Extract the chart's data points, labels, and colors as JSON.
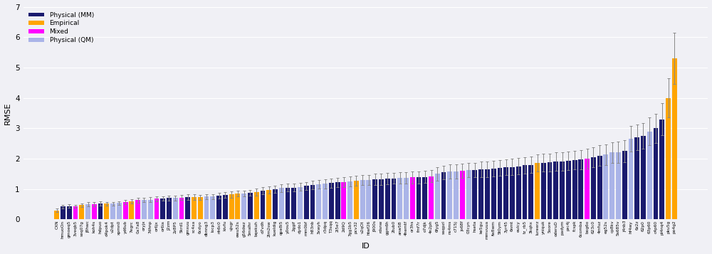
{
  "bars": [
    {
      "id": "CXN",
      "value": 0.3,
      "color": "#FFA500",
      "err": 0.05
    },
    {
      "id": "hmuoOn",
      "value": 0.42,
      "color": "#1a1a6e",
      "err": 0.06
    },
    {
      "id": "gmoeq5",
      "value": 0.44,
      "color": "#1a1a6e",
      "err": 0.06
    },
    {
      "id": "3veqb5",
      "value": 0.43,
      "color": "#FF00FF",
      "err": 0.05
    },
    {
      "id": "seq07g",
      "value": 0.47,
      "color": "#FFA500",
      "err": 0.06
    },
    {
      "id": "j8hwc",
      "value": 0.5,
      "color": "#aab4e8",
      "err": 0.06
    },
    {
      "id": "koh4s",
      "value": 0.5,
      "color": "#FF00FF",
      "err": 0.06
    },
    {
      "id": "hdpuo",
      "value": 0.52,
      "color": "#1a1a6e",
      "err": 0.07
    },
    {
      "id": "d4pok4",
      "value": 0.52,
      "color": "#FFA500",
      "err": 0.06
    },
    {
      "id": "v2dpt",
      "value": 0.52,
      "color": "#aab4e8",
      "err": 0.06
    },
    {
      "id": "xpmn0",
      "value": 0.54,
      "color": "#aab4e8",
      "err": 0.06
    },
    {
      "id": "yd6ub",
      "value": 0.56,
      "color": "#FF00FF",
      "err": 0.07
    },
    {
      "id": "7egrc",
      "value": 0.6,
      "color": "#FFA500",
      "err": 0.07
    },
    {
      "id": "0a7a8",
      "value": 0.63,
      "color": "#FF00FF",
      "err": 0.08
    },
    {
      "id": "oryjx",
      "value": 0.65,
      "color": "#aab4e8",
      "err": 0.07
    },
    {
      "id": "7dhnp",
      "value": 0.65,
      "color": "#aab4e8",
      "err": 0.08
    },
    {
      "id": "or6jx",
      "value": 0.68,
      "color": "#FF00FF",
      "err": 0.08
    },
    {
      "id": "or6ia",
      "value": 0.68,
      "color": "#1a1a6e",
      "err": 0.07
    },
    {
      "id": "J2zm",
      "value": 0.7,
      "color": "#1a1a6e",
      "err": 0.08
    },
    {
      "id": "2z8P5",
      "value": 0.7,
      "color": "#aab4e8",
      "err": 0.08
    },
    {
      "id": "5krd1",
      "value": 0.72,
      "color": "#FF00FF",
      "err": 0.09
    },
    {
      "id": "gmxuu",
      "value": 0.73,
      "color": "#1a1a6e",
      "err": 0.09
    },
    {
      "id": "sc4xa",
      "value": 0.73,
      "color": "#FFA500",
      "err": 0.09
    },
    {
      "id": "6cdyo",
      "value": 0.73,
      "color": "#FFA500",
      "err": 0.08
    },
    {
      "id": "dbnng3",
      "value": 0.75,
      "color": "#aab4e8",
      "err": 0.09
    },
    {
      "id": "locp3",
      "value": 0.75,
      "color": "#aab4e8",
      "err": 0.09
    },
    {
      "id": "nh6c0",
      "value": 0.78,
      "color": "#1a1a6e",
      "err": 0.1
    },
    {
      "id": "kivfu",
      "value": 0.8,
      "color": "#1a1a6e",
      "err": 0.1
    },
    {
      "id": "ujsgr",
      "value": 0.82,
      "color": "#FFA500",
      "err": 0.1
    },
    {
      "id": "ewu52s",
      "value": 0.85,
      "color": "#FFA500",
      "err": 0.1
    },
    {
      "id": "g56dwz",
      "value": 0.85,
      "color": "#aab4e8",
      "err": 0.1
    },
    {
      "id": "5malhr",
      "value": 0.88,
      "color": "#1a1a6e",
      "err": 0.1
    },
    {
      "id": "bqekuh",
      "value": 0.9,
      "color": "#FFA500",
      "err": 0.11
    },
    {
      "id": "d7vdh",
      "value": 0.95,
      "color": "#1a1a6e",
      "err": 0.12
    },
    {
      "id": "2lm2sw",
      "value": 0.97,
      "color": "#FFA500",
      "err": 0.12
    },
    {
      "id": "kueldig",
      "value": 1.0,
      "color": "#1a1a6e",
      "err": 0.12
    },
    {
      "id": "qpe8i5",
      "value": 1.03,
      "color": "#aab4e8",
      "err": 0.13
    },
    {
      "id": "y0ou5",
      "value": 1.05,
      "color": "#1a1a6e",
      "err": 0.13
    },
    {
      "id": "2ggif",
      "value": 1.05,
      "color": "#1a1a6e",
      "err": 0.13
    },
    {
      "id": "dydo1",
      "value": 1.07,
      "color": "#aab4e8",
      "err": 0.13
    },
    {
      "id": "mm0bf",
      "value": 1.1,
      "color": "#1a1a6e",
      "err": 0.13
    },
    {
      "id": "h83nb",
      "value": 1.13,
      "color": "#1a1a6e",
      "err": 0.14
    },
    {
      "id": "3xwyh",
      "value": 1.15,
      "color": "#aab4e8",
      "err": 0.14
    },
    {
      "id": "r3dpq",
      "value": 1.17,
      "color": "#aab4e8",
      "err": 0.15
    },
    {
      "id": "T3sqq",
      "value": 1.2,
      "color": "#1a1a6e",
      "err": 0.15
    },
    {
      "id": "2i5e7",
      "value": 1.22,
      "color": "#1a1a6e",
      "err": 0.15
    },
    {
      "id": "2d9Q",
      "value": 1.22,
      "color": "#FF00FF",
      "err": 0.16
    },
    {
      "id": "7gg1b5",
      "value": 1.25,
      "color": "#aab4e8",
      "err": 0.16
    },
    {
      "id": "pcv32",
      "value": 1.27,
      "color": "#FFA500",
      "err": 0.17
    },
    {
      "id": "v2qOt",
      "value": 1.3,
      "color": "#aab4e8",
      "err": 0.17
    },
    {
      "id": "htwf26",
      "value": 1.3,
      "color": "#aab4e8",
      "err": 0.17
    },
    {
      "id": "j900s",
      "value": 1.32,
      "color": "#1a1a6e",
      "err": 0.18
    },
    {
      "id": "rdsnw",
      "value": 1.32,
      "color": "#1a1a6e",
      "err": 0.18
    },
    {
      "id": "ggm6h",
      "value": 1.34,
      "color": "#1a1a6e",
      "err": 0.18
    },
    {
      "id": "2tub0",
      "value": 1.35,
      "color": "#1a1a6e",
      "err": 0.18
    },
    {
      "id": "anw5B",
      "value": 1.37,
      "color": "#aab4e8",
      "err": 0.19
    },
    {
      "id": "4hemtf",
      "value": 1.37,
      "color": "#aab4e8",
      "err": 0.19
    },
    {
      "id": "or3hs",
      "value": 1.38,
      "color": "#FF00FF",
      "err": 0.19
    },
    {
      "id": "fmf7r",
      "value": 1.38,
      "color": "#1a1a6e",
      "err": 0.2
    },
    {
      "id": "o7djk",
      "value": 1.4,
      "color": "#1a1a6e",
      "err": 0.2
    },
    {
      "id": "4n2ph",
      "value": 1.42,
      "color": "#FF00FF",
      "err": 0.2
    },
    {
      "id": "6fyg5",
      "value": 1.5,
      "color": "#aab4e8",
      "err": 0.22
    },
    {
      "id": "saqpzl",
      "value": 1.55,
      "color": "#1a1a6e",
      "err": 0.22
    },
    {
      "id": "ns4ms",
      "value": 1.58,
      "color": "#aab4e8",
      "err": 0.23
    },
    {
      "id": "c715j",
      "value": 1.58,
      "color": "#aab4e8",
      "err": 0.23
    },
    {
      "id": "jo68f",
      "value": 1.6,
      "color": "#FF00FF",
      "err": 0.24
    },
    {
      "id": "03cyn",
      "value": 1.62,
      "color": "#aab4e8",
      "err": 0.24
    },
    {
      "id": "hseta",
      "value": 1.62,
      "color": "#1a1a6e",
      "err": 0.24
    },
    {
      "id": "ke5gu",
      "value": 1.65,
      "color": "#1a1a6e",
      "err": 0.25
    },
    {
      "id": "mmvuua",
      "value": 1.65,
      "color": "#1a1a6e",
      "err": 0.25
    },
    {
      "id": "fw8wm",
      "value": 1.67,
      "color": "#1a1a6e",
      "err": 0.25
    },
    {
      "id": "5t0ym",
      "value": 1.7,
      "color": "#1a1a6e",
      "err": 0.26
    },
    {
      "id": "3yr45",
      "value": 1.72,
      "color": "#1a1a6e",
      "err": 0.26
    },
    {
      "id": "6nmt",
      "value": 1.73,
      "color": "#1a1a6e",
      "err": 0.26
    },
    {
      "id": "eulcy",
      "value": 1.75,
      "color": "#1a1a6e",
      "err": 0.27
    },
    {
      "id": "tz_rb5",
      "value": 1.78,
      "color": "#1a1a6e",
      "err": 0.27
    },
    {
      "id": "3kqhx",
      "value": 1.8,
      "color": "#1a1a6e",
      "err": 0.28
    },
    {
      "id": "lureerz",
      "value": 1.85,
      "color": "#FFA500",
      "err": 0.28
    },
    {
      "id": "yniquk",
      "value": 1.87,
      "color": "#1a1a6e",
      "err": 0.29
    },
    {
      "id": "5oore",
      "value": 1.88,
      "color": "#1a1a6e",
      "err": 0.29
    },
    {
      "id": "oderuD",
      "value": 1.9,
      "color": "#1a1a6e",
      "err": 0.3
    },
    {
      "id": "padym",
      "value": 1.9,
      "color": "#1a1a6e",
      "err": 0.3
    },
    {
      "id": "prc4j",
      "value": 1.93,
      "color": "#1a1a6e",
      "err": 0.3
    },
    {
      "id": "fcspk",
      "value": 1.95,
      "color": "#1a1a6e",
      "err": 0.31
    },
    {
      "id": "6comba",
      "value": 1.97,
      "color": "#1a1a6e",
      "err": 0.31
    },
    {
      "id": "bog6o",
      "value": 2.0,
      "color": "#FF00FF",
      "err": 0.32
    },
    {
      "id": "623c0",
      "value": 2.05,
      "color": "#1a1a6e",
      "err": 0.33
    },
    {
      "id": "4mfuz",
      "value": 2.1,
      "color": "#1a1a6e",
      "err": 0.34
    },
    {
      "id": "eg52s",
      "value": 2.13,
      "color": "#aab4e8",
      "err": 0.34
    },
    {
      "id": "cp8kv",
      "value": 2.2,
      "color": "#aab4e8",
      "err": 0.35
    },
    {
      "id": "5s685v",
      "value": 2.22,
      "color": "#aab4e8",
      "err": 0.35
    },
    {
      "id": "j4nb3",
      "value": 2.25,
      "color": "#1a1a6e",
      "err": 0.36
    },
    {
      "id": "hf4wy",
      "value": 2.65,
      "color": "#aab4e8",
      "err": 0.42
    },
    {
      "id": "6z2z",
      "value": 2.7,
      "color": "#1a1a6e",
      "err": 0.43
    },
    {
      "id": "62p0",
      "value": 2.75,
      "color": "#1a1a6e",
      "err": 0.43
    },
    {
      "id": "63p60",
      "value": 2.9,
      "color": "#aab4e8",
      "err": 0.46
    },
    {
      "id": "c4p60",
      "value": 3.0,
      "color": "#1a1a6e",
      "err": 0.48
    },
    {
      "id": "pl4nq4",
      "value": 3.3,
      "color": "#1a1a6e",
      "err": 0.52
    },
    {
      "id": "pku5g",
      "value": 4.0,
      "color": "#FFA500",
      "err": 0.65
    },
    {
      "id": "po4g2",
      "value": 5.3,
      "color": "#FFA500",
      "err": 0.85
    }
  ],
  "ylabel": "RMSE",
  "xlabel": "ID",
  "ylim": [
    0,
    7
  ],
  "yticks": [
    0,
    1,
    2,
    3,
    4,
    5,
    6,
    7
  ],
  "legend": [
    {
      "label": "Physical (MM)",
      "color": "#1a1a6e"
    },
    {
      "label": "Empirical",
      "color": "#FFA500"
    },
    {
      "label": "Mixed",
      "color": "#FF00FF"
    },
    {
      "label": "Physical (QM)",
      "color": "#aab4e8"
    }
  ],
  "bg_color": "#f0f0f5",
  "grid_color": "#ffffff",
  "figwidth": 10.0,
  "figheight": 3.57,
  "dpi": 100
}
